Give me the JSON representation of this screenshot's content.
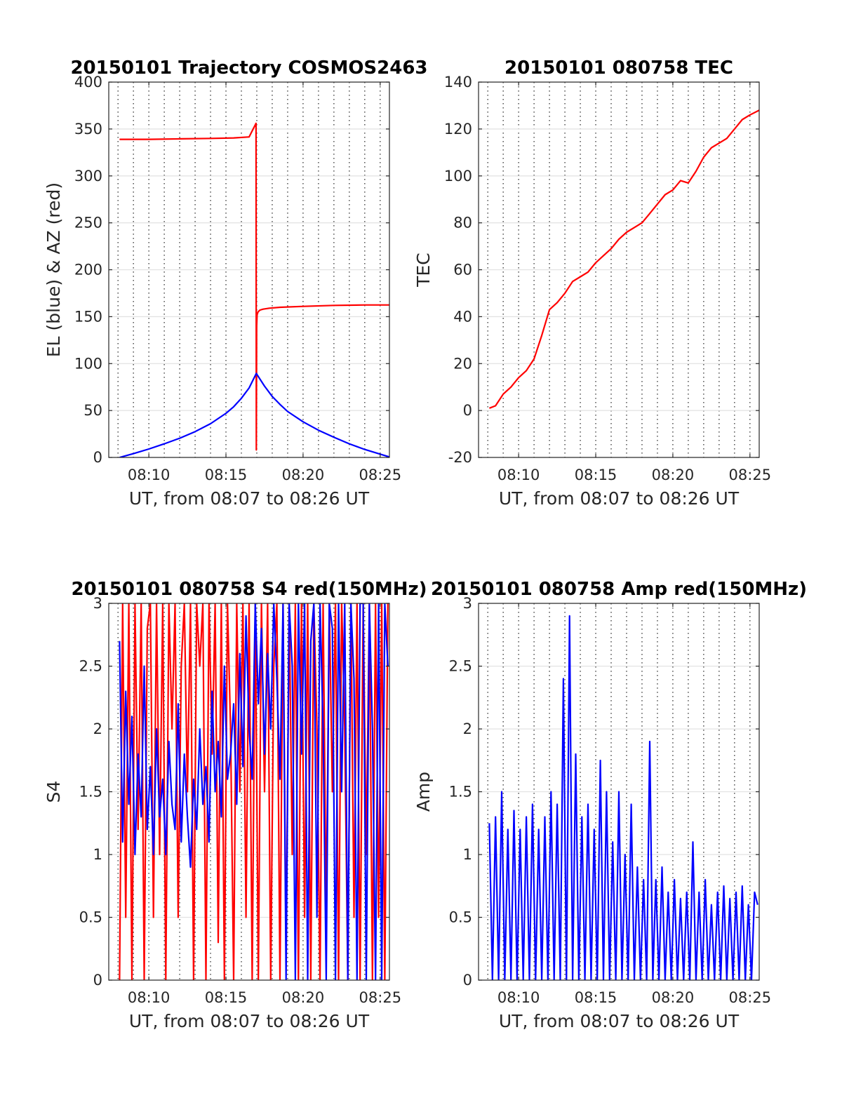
{
  "chart_data": [
    {
      "type": "line",
      "title": "20150101 Trajectory COSMOS2463",
      "xlabel": "UT, from 08:07 to 08:26 UT",
      "ylabel": "EL (blue) & AZ (red)",
      "xlim": [
        7.4,
        25.6
      ],
      "ylim": [
        0,
        400
      ],
      "xticks": [
        10,
        15,
        20,
        25
      ],
      "xtick_labels": [
        "08:10",
        "08:15",
        "08:20",
        "08:25"
      ],
      "yticks": [
        0,
        50,
        100,
        150,
        200,
        250,
        300,
        350,
        400
      ],
      "ytick_labels": [
        "0",
        "50",
        "100",
        "150",
        "200",
        "250",
        "300",
        "350",
        "400"
      ],
      "grid": true,
      "series": [
        {
          "color": "#ff0000",
          "x": [
            8.1,
            10,
            12,
            14,
            15.5,
            16.5,
            16.95,
            16.97,
            16.99,
            17.02,
            17.08,
            17.2,
            17.4,
            17.8,
            18.5,
            20,
            22,
            24,
            25.6
          ],
          "y": [
            339,
            339,
            339.5,
            340,
            340.5,
            341.5,
            356,
            8,
            140,
            152,
            155,
            157,
            158,
            159,
            160,
            161,
            162,
            162.5,
            162.5
          ]
        },
        {
          "color": "#0000ff",
          "x": [
            8.1,
            9,
            10,
            11,
            12,
            13,
            14,
            15,
            15.5,
            16,
            16.5,
            16.97,
            17.5,
            18,
            18.5,
            19,
            20,
            21,
            22,
            23,
            24,
            25,
            25.6
          ],
          "y": [
            0,
            4,
            9,
            14.5,
            20.5,
            27.5,
            36,
            47,
            54,
            63,
            74,
            89.5,
            76,
            65,
            56.5,
            49,
            38,
            29,
            21.5,
            14.5,
            8.5,
            3.5,
            0.5
          ]
        }
      ]
    },
    {
      "type": "line",
      "title": "20150101 080758 TEC",
      "xlabel": "UT, from 08:07 to 08:26 UT",
      "ylabel": "TEC",
      "xlim": [
        7.4,
        25.6
      ],
      "ylim": [
        -20,
        140
      ],
      "xticks": [
        10,
        15,
        20,
        25
      ],
      "xtick_labels": [
        "08:10",
        "08:15",
        "08:20",
        "08:25"
      ],
      "yticks": [
        -20,
        0,
        20,
        40,
        60,
        80,
        100,
        120,
        140
      ],
      "ytick_labels": [
        "-20",
        "0",
        "20",
        "40",
        "60",
        "80",
        "100",
        "120",
        "140"
      ],
      "grid": true,
      "series": [
        {
          "color": "#ff0000",
          "x": [
            8.1,
            8.5,
            9,
            9.5,
            10,
            10.5,
            11,
            11.5,
            12,
            12.5,
            13,
            13.5,
            14,
            14.5,
            15,
            15.5,
            16,
            16.5,
            17,
            17.5,
            18,
            18.5,
            19,
            19.5,
            20,
            20.5,
            21,
            21.5,
            22,
            22.5,
            23,
            23.5,
            24,
            24.5,
            25,
            25.6
          ],
          "y": [
            1,
            2,
            7,
            10,
            14,
            17,
            22,
            32,
            43,
            46,
            50,
            55,
            57,
            59,
            63,
            66,
            69,
            73,
            76,
            78,
            80,
            84,
            88,
            92,
            94,
            98,
            97,
            102,
            108,
            112,
            114,
            116,
            120,
            124,
            126,
            128
          ]
        }
      ]
    },
    {
      "type": "line",
      "title": "20150101 080758 S4 red(150MHz)",
      "xlabel": "UT, from 08:07 to 08:26 UT",
      "ylabel": "S4",
      "xlim": [
        7.4,
        25.6
      ],
      "ylim": [
        0,
        3
      ],
      "xticks": [
        10,
        15,
        20,
        25
      ],
      "xtick_labels": [
        "08:10",
        "08:15",
        "08:20",
        "08:25"
      ],
      "yticks": [
        0,
        0.5,
        1,
        1.5,
        2,
        2.5,
        3
      ],
      "ytick_labels": [
        "0",
        "0.5",
        "1",
        "1.5",
        "2",
        "2.5",
        "3"
      ],
      "grid": true,
      "series": [
        {
          "color": "#ff0000",
          "x": [
            8.1,
            8.3,
            8.5,
            8.7,
            8.9,
            9.1,
            9.3,
            9.5,
            9.7,
            9.9,
            10.1,
            10.3,
            10.5,
            10.7,
            10.9,
            11.1,
            11.3,
            11.5,
            11.7,
            11.9,
            12.1,
            12.3,
            12.5,
            12.7,
            12.9,
            13.1,
            13.3,
            13.5,
            13.7,
            13.9,
            14.1,
            14.3,
            14.5,
            14.7,
            14.9,
            15.1,
            15.3,
            15.5,
            15.7,
            15.9,
            16.1,
            16.3,
            16.5,
            16.7,
            16.9,
            17.1,
            17.3,
            17.5,
            17.7,
            17.9,
            18.1,
            18.3,
            18.5,
            18.7,
            18.9,
            19.1,
            19.3,
            19.5,
            19.7,
            19.9,
            20.1,
            20.3,
            20.5,
            20.7,
            20.9,
            21.1,
            21.3,
            21.5,
            21.7,
            21.9,
            22.1,
            22.3,
            22.5,
            22.7,
            22.9,
            23.1,
            23.3,
            23.5,
            23.7,
            23.9,
            24.1,
            24.3,
            24.5,
            24.7,
            24.9,
            25.1,
            25.3,
            25.5
          ],
          "y": [
            0,
            3,
            0.5,
            3,
            0,
            3,
            1.2,
            3,
            0,
            2.8,
            3,
            0.5,
            3,
            1.0,
            3,
            0,
            3,
            2.0,
            3,
            0.5,
            2.5,
            3,
            1.5,
            3,
            0,
            3,
            2.5,
            3,
            0,
            3,
            1.8,
            3,
            0.3,
            3,
            0,
            3,
            2.0,
            0,
            3,
            1.5,
            3,
            0.5,
            3,
            0,
            3,
            0,
            3,
            1.5,
            3,
            0,
            2.5,
            3,
            0,
            3,
            0.2,
            3,
            1.0,
            3,
            0,
            3,
            0.5,
            3,
            0,
            3,
            2.0,
            0,
            3,
            0.5,
            3,
            1.5,
            3,
            0,
            3,
            2.0,
            0,
            3,
            0.5,
            3,
            0,
            3,
            1.0,
            3,
            0,
            3,
            0.5,
            3,
            0,
            3
          ]
        },
        {
          "color": "#0000ff",
          "x": [
            8.1,
            8.3,
            8.5,
            8.7,
            8.9,
            9.1,
            9.3,
            9.5,
            9.7,
            9.9,
            10.1,
            10.3,
            10.5,
            10.7,
            10.9,
            11.1,
            11.3,
            11.5,
            11.7,
            11.9,
            12.1,
            12.3,
            12.5,
            12.7,
            12.9,
            13.1,
            13.3,
            13.5,
            13.7,
            13.9,
            14.1,
            14.3,
            14.5,
            14.7,
            14.9,
            15.1,
            15.3,
            15.5,
            15.7,
            15.9,
            16.1,
            16.3,
            16.5,
            16.7,
            16.9,
            17.1,
            17.3,
            17.5,
            17.7,
            17.9,
            18.1,
            18.3,
            18.5,
            18.7,
            18.9,
            19.1,
            19.3,
            19.5,
            19.7,
            19.9,
            20.1,
            20.3,
            20.5,
            20.7,
            20.9,
            21.1,
            21.3,
            21.5,
            21.7,
            21.9,
            22.1,
            22.3,
            22.5,
            22.7,
            22.9,
            23.1,
            23.3,
            23.5,
            23.7,
            23.9,
            24.1,
            24.3,
            24.5,
            24.7,
            24.9,
            25.1,
            25.3,
            25.5
          ],
          "y": [
            2.7,
            1.1,
            2.3,
            1.4,
            2.1,
            1.0,
            1.8,
            1.3,
            2.5,
            1.2,
            1.7,
            1.0,
            2.0,
            1.3,
            1.6,
            1.0,
            1.9,
            1.4,
            1.2,
            2.2,
            1.1,
            1.8,
            1.3,
            0.9,
            1.6,
            1.2,
            2.0,
            1.4,
            1.7,
            1.1,
            2.3,
            1.5,
            1.9,
            1.3,
            2.5,
            1.6,
            1.8,
            2.2,
            1.4,
            2.6,
            1.7,
            2.9,
            2.0,
            1.6,
            3.0,
            2.2,
            2.8,
            1.8,
            2.6,
            2.0,
            3.0,
            2.4,
            1.6,
            3.0,
            0,
            3.0,
            2.5,
            0,
            3.0,
            1.8,
            3.0,
            0,
            2.7,
            3.0,
            0.5,
            3.0,
            2.0,
            0,
            3.0,
            2.8,
            0,
            3.0,
            1.5,
            3.0,
            0,
            3.0,
            2.4,
            0,
            3.0,
            3.0,
            0,
            3.0,
            2.0,
            0,
            3.0,
            0,
            3.0,
            2.5
          ]
        }
      ]
    },
    {
      "type": "line",
      "title": "20150101 080758 Amp red(150MHz)",
      "xlabel": "UT, from 08:07 to 08:26 UT",
      "ylabel": "Amp",
      "xlim": [
        7.4,
        25.6
      ],
      "ylim": [
        0,
        3
      ],
      "xticks": [
        10,
        15,
        20,
        25
      ],
      "xtick_labels": [
        "08:10",
        "08:15",
        "08:20",
        "08:25"
      ],
      "yticks": [
        0,
        0.5,
        1,
        1.5,
        2,
        2.5,
        3
      ],
      "ytick_labels": [
        "0",
        "0.5",
        "1",
        "1.5",
        "2",
        "2.5",
        "3"
      ],
      "grid": true,
      "series": [
        {
          "color": "#0000ff",
          "x": [
            8.1,
            8.3,
            8.5,
            8.7,
            8.9,
            9.1,
            9.3,
            9.5,
            9.7,
            9.9,
            10.1,
            10.3,
            10.5,
            10.7,
            10.9,
            11.1,
            11.3,
            11.5,
            11.7,
            11.9,
            12.1,
            12.3,
            12.5,
            12.7,
            12.9,
            13.1,
            13.3,
            13.5,
            13.7,
            13.9,
            14.1,
            14.3,
            14.5,
            14.7,
            14.9,
            15.1,
            15.3,
            15.5,
            15.7,
            15.9,
            16.1,
            16.3,
            16.5,
            16.7,
            16.9,
            17.1,
            17.3,
            17.5,
            17.7,
            17.9,
            18.1,
            18.3,
            18.5,
            18.7,
            18.9,
            19.1,
            19.3,
            19.5,
            19.7,
            19.9,
            20.1,
            20.3,
            20.5,
            20.7,
            20.9,
            21.1,
            21.3,
            21.5,
            21.7,
            21.9,
            22.1,
            22.3,
            22.5,
            22.7,
            22.9,
            23.1,
            23.3,
            23.5,
            23.7,
            23.9,
            24.1,
            24.3,
            24.5,
            24.7,
            24.9,
            25.1,
            25.3,
            25.5
          ],
          "y": [
            1.25,
            0,
            1.3,
            0,
            1.5,
            0,
            1.2,
            0,
            1.35,
            0,
            1.2,
            0,
            1.3,
            0,
            1.4,
            0,
            1.2,
            0,
            1.3,
            0,
            1.5,
            0,
            1.4,
            0,
            2.4,
            0,
            2.9,
            0,
            1.8,
            0,
            1.3,
            0,
            1.4,
            0,
            1.2,
            0,
            1.75,
            0,
            1.5,
            0,
            1.1,
            0,
            1.5,
            0,
            1.0,
            0,
            1.4,
            0,
            0.9,
            0,
            0.8,
            0,
            1.9,
            0,
            0.8,
            0,
            0.9,
            0,
            0.7,
            0,
            0.8,
            0,
            0.65,
            0,
            0.7,
            0,
            1.1,
            0,
            0.7,
            0,
            0.8,
            0,
            0.6,
            0,
            0.7,
            0,
            0.75,
            0,
            0.65,
            0,
            0.7,
            0,
            0.75,
            0,
            0.6,
            0,
            0.7,
            0.6
          ]
        }
      ]
    }
  ]
}
